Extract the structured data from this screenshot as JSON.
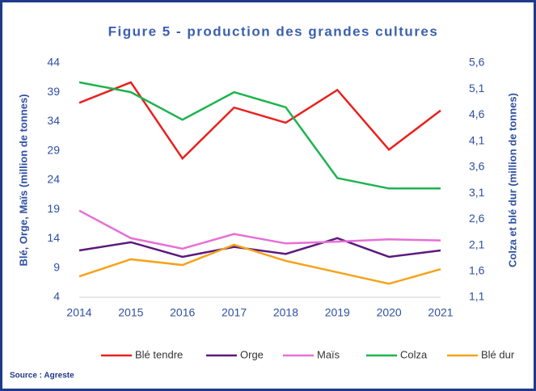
{
  "chart_data": {
    "type": "line",
    "title": "Figure 5 - production des grandes cultures",
    "ylabel": "Blé, Orge, Maïs (million de tonnes)",
    "y2label": "Colza et blé dur (million de tonnes)",
    "source": "Source : Agreste",
    "categories": [
      "2014",
      "2015",
      "2016",
      "2017",
      "2018",
      "2019",
      "2020",
      "2021"
    ],
    "ylim": [
      4,
      44
    ],
    "yticks": [
      4,
      9,
      14,
      19,
      24,
      29,
      34,
      39,
      44
    ],
    "y2lim": [
      1.1,
      5.6
    ],
    "y2ticks": [
      {
        "value": 1.1,
        "label": "1,1"
      },
      {
        "value": 1.6,
        "label": "1,6"
      },
      {
        "value": 2.1,
        "label": "2,1"
      },
      {
        "value": 2.6,
        "label": "2,6"
      },
      {
        "value": 3.1,
        "label": "3,1"
      },
      {
        "value": 3.6,
        "label": "3,6"
      },
      {
        "value": 4.1,
        "label": "4,1"
      },
      {
        "value": 4.6,
        "label": "4,6"
      },
      {
        "value": 5.1,
        "label": "5,1"
      },
      {
        "value": 5.6,
        "label": "5,6"
      }
    ],
    "grid": false,
    "series": [
      {
        "name": "Blé tendre",
        "color": "#e8211d",
        "values": [
          37.2,
          40.7,
          27.7,
          36.4,
          33.8,
          39.4,
          29.2,
          35.9
        ]
      },
      {
        "name": "Orge",
        "color": "#5b1a7d",
        "values": [
          12.0,
          13.4,
          10.9,
          12.6,
          11.4,
          14.1,
          10.9,
          12.0
        ]
      },
      {
        "name": "Maïs",
        "color": "#e66fd6",
        "values": [
          18.8,
          14.1,
          12.3,
          14.8,
          13.2,
          13.5,
          13.9,
          13.7
        ]
      },
      {
        "name": "Colza",
        "color": "#1db34f",
        "axis": "y2",
        "values": [
          5.23,
          5.04,
          4.51,
          5.04,
          4.75,
          3.39,
          3.19,
          3.19
        ]
      },
      {
        "name": "Blé dur",
        "color": "#f5a31a",
        "axis": "y2",
        "values": [
          1.5,
          1.83,
          1.72,
          2.11,
          1.8,
          1.58,
          1.36,
          1.64
        ]
      }
    ]
  }
}
